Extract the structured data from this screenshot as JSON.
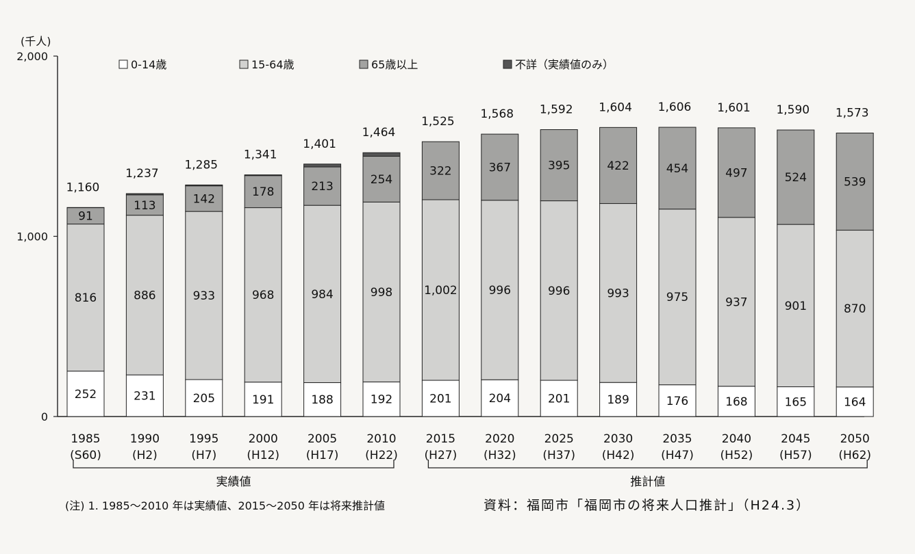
{
  "chart_data": {
    "type": "bar",
    "stacked": true,
    "unit_label": "(千人)",
    "y_ticks": [
      "2,000",
      "1,000",
      "0"
    ],
    "ylim": [
      0,
      2000
    ],
    "categories": [
      "1985",
      "1990",
      "1995",
      "2000",
      "2005",
      "2010",
      "2015",
      "2020",
      "2025",
      "2030",
      "2035",
      "2040",
      "2045",
      "2050"
    ],
    "era_labels": [
      "(S60)",
      "(H2)",
      "(H7)",
      "(H12)",
      "(H17)",
      "(H22)",
      "(H27)",
      "(H32)",
      "(H37)",
      "(H42)",
      "(H47)",
      "(H52)",
      "(H57)",
      "(H62)"
    ],
    "series": [
      {
        "name": "0-14歳",
        "color": "#ffffff",
        "values": [
          252,
          231,
          205,
          191,
          188,
          192,
          201,
          204,
          201,
          189,
          176,
          168,
          165,
          164
        ],
        "labels": [
          "252",
          "231",
          "205",
          "191",
          "188",
          "192",
          "201",
          "204",
          "201",
          "189",
          "176",
          "168",
          "165",
          "164"
        ]
      },
      {
        "name": "15-64歳",
        "color": "#d2d2d0",
        "values": [
          816,
          886,
          933,
          968,
          984,
          998,
          1002,
          996,
          996,
          993,
          975,
          937,
          901,
          870
        ],
        "labels": [
          "816",
          "886",
          "933",
          "968",
          "984",
          "998",
          "1,002",
          "996",
          "996",
          "993",
          "975",
          "937",
          "901",
          "870"
        ]
      },
      {
        "name": "65歳以上",
        "color": "#a3a3a1",
        "values": [
          91,
          113,
          142,
          178,
          213,
          254,
          322,
          367,
          395,
          422,
          454,
          497,
          524,
          539
        ],
        "labels": [
          "91",
          "113",
          "142",
          "178",
          "213",
          "254",
          "322",
          "367",
          "395",
          "422",
          "454",
          "497",
          "524",
          "539"
        ]
      },
      {
        "name": "不詳（実績値のみ）",
        "color": "#555555",
        "values": [
          1,
          7,
          5,
          4,
          16,
          20,
          0,
          0,
          0,
          0,
          0,
          0,
          0,
          0
        ],
        "labels": []
      }
    ],
    "totals": [
      "1,160",
      "1,237",
      "1,285",
      "1,341",
      "1,401",
      "1,464",
      "1,525",
      "1,568",
      "1,592",
      "1,604",
      "1,606",
      "1,601",
      "1,590",
      "1,573"
    ],
    "brackets": [
      {
        "label": "実績値",
        "from": 0,
        "to": 5
      },
      {
        "label": "推計値",
        "from": 6,
        "to": 13
      }
    ],
    "legend_position": "top",
    "grid": false
  },
  "note": "(注) 1. 1985〜2010 年は実績値、2015〜2050 年は将来推計値",
  "source": "資料：福岡市「福岡市の将来人口推計」（H24.3）"
}
